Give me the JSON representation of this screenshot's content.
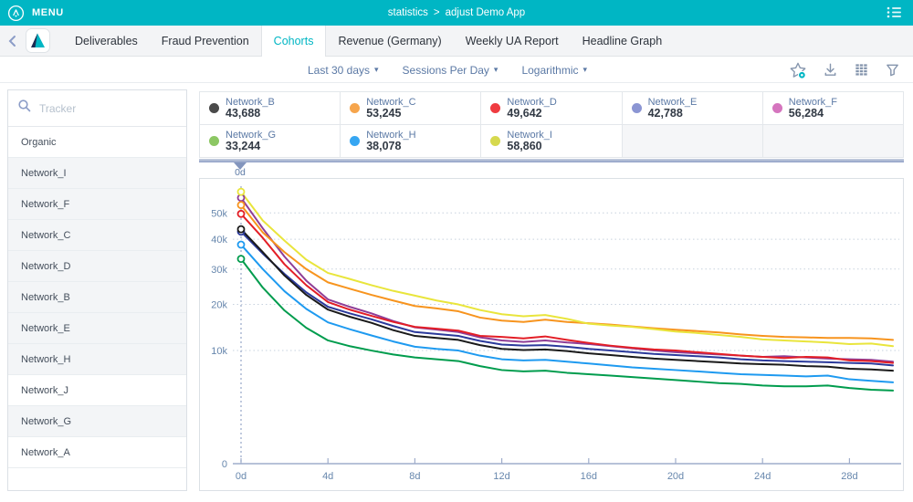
{
  "colors": {
    "accent_teal": "#00b6c4",
    "slate_label": "#5b79a5",
    "axis_text": "#6787ad",
    "grid_dotted": "#c7d1de",
    "axis_line": "#9fadcb",
    "icon_gray": "#8595ad"
  },
  "topbar": {
    "menu_label": "MENU",
    "breadcrumb": {
      "section": "statistics",
      "separator": ">",
      "page": "adjust Demo App"
    }
  },
  "tabs": [
    {
      "label": "Deliverables",
      "active": false
    },
    {
      "label": "Fraud Prevention",
      "active": false
    },
    {
      "label": "Cohorts",
      "active": true
    },
    {
      "label": "Revenue (Germany)",
      "active": false
    },
    {
      "label": "Weekly UA Report",
      "active": false
    },
    {
      "label": "Headline Graph",
      "active": false
    }
  ],
  "filters": {
    "dropdowns": [
      {
        "label": "Last 30 days"
      },
      {
        "label": "Sessions Per Day"
      },
      {
        "label": "Logarithmic"
      }
    ],
    "tools": [
      "favorite-star",
      "download",
      "table-view",
      "filter"
    ]
  },
  "sidebar": {
    "search_placeholder": "Tracker",
    "items": [
      {
        "label": "Organic",
        "highlighted": false
      },
      {
        "label": "Network_I",
        "highlighted": true
      },
      {
        "label": "Network_F",
        "highlighted": true
      },
      {
        "label": "Network_C",
        "highlighted": true
      },
      {
        "label": "Network_D",
        "highlighted": true
      },
      {
        "label": "Network_B",
        "highlighted": true
      },
      {
        "label": "Network_E",
        "highlighted": true
      },
      {
        "label": "Network_H",
        "highlighted": true
      },
      {
        "label": "Network_J",
        "highlighted": false
      },
      {
        "label": "Network_G",
        "highlighted": true
      },
      {
        "label": "Network_A",
        "highlighted": false
      }
    ]
  },
  "legend": {
    "cells": [
      {
        "name": "Network_B",
        "value": "43,688",
        "dot_color": "#4a4a4a"
      },
      {
        "name": "Network_C",
        "value": "53,245",
        "dot_color": "#f6a54c"
      },
      {
        "name": "Network_D",
        "value": "49,642",
        "dot_color": "#ef3b40"
      },
      {
        "name": "Network_E",
        "value": "42,788",
        "dot_color": "#8b95d3"
      },
      {
        "name": "Network_F",
        "value": "56,284",
        "dot_color": "#d575be"
      },
      {
        "name": "Network_G",
        "value": "33,244",
        "dot_color": "#8cc763"
      },
      {
        "name": "Network_H",
        "value": "38,078",
        "dot_color": "#36a6f2"
      },
      {
        "name": "Network_I",
        "value": "58,860",
        "dot_color": "#d6d94e"
      },
      {
        "empty": true
      },
      {
        "empty": true
      }
    ]
  },
  "slider": {
    "label": "0d"
  },
  "chart_data": {
    "type": "line",
    "x_unit": "days",
    "x_max": 30,
    "y_scale": "sqrt",
    "y_ticks": [
      {
        "label": "50k",
        "value": 50000
      },
      {
        "label": "40k",
        "value": 40000
      },
      {
        "label": "30k",
        "value": 30000
      },
      {
        "label": "20k",
        "value": 20000
      },
      {
        "label": "10k",
        "value": 10000
      }
    ],
    "y_zero_label": "0",
    "x_ticks": [
      {
        "label": "0d",
        "day": 0
      },
      {
        "label": "4d",
        "day": 4
      },
      {
        "label": "8d",
        "day": 8
      },
      {
        "label": "12d",
        "day": 12
      },
      {
        "label": "16d",
        "day": 16
      },
      {
        "label": "20d",
        "day": 20
      },
      {
        "label": "24d",
        "day": 24
      },
      {
        "label": "28d",
        "day": 28
      }
    ],
    "series": [
      {
        "name": "Network_G",
        "color": "#009c4d",
        "dot_color": "#8cc763",
        "values": [
          33244,
          24500,
          18500,
          14500,
          11900,
          10800,
          10000,
          9300,
          8800,
          8500,
          8200,
          7400,
          6800,
          6600,
          6700,
          6400,
          6200,
          6000,
          5800,
          5600,
          5400,
          5200,
          5000,
          4900,
          4700,
          4600,
          4600,
          4700,
          4400,
          4200,
          4100
        ]
      },
      {
        "name": "Network_H",
        "color": "#1e9af0",
        "dot_color": "#36a6f2",
        "values": [
          38078,
          30000,
          23500,
          18900,
          15700,
          14200,
          12900,
          11700,
          10700,
          10300,
          10000,
          9100,
          8500,
          8300,
          8400,
          8100,
          7800,
          7500,
          7200,
          7000,
          6800,
          6600,
          6400,
          6200,
          6100,
          6000,
          5900,
          6000,
          5500,
          5300,
          5100
        ]
      },
      {
        "name": "Network_E",
        "color": "#2b3a9c",
        "dot_color": "#8b95d3",
        "values": [
          42788,
          35000,
          28500,
          23200,
          19400,
          17800,
          16400,
          14900,
          13600,
          13200,
          12800,
          11800,
          11100,
          10900,
          11000,
          10700,
          10300,
          10000,
          9700,
          9400,
          9200,
          9000,
          8800,
          8500,
          8300,
          8200,
          8100,
          8000,
          7900,
          7800,
          7500
        ]
      },
      {
        "name": "Network_B",
        "color": "#1a1a1a",
        "dot_color": "#4a4a4a",
        "values": [
          43688,
          35500,
          28000,
          22500,
          18700,
          17000,
          15600,
          14000,
          12800,
          12400,
          12000,
          11000,
          10300,
          10100,
          10200,
          9900,
          9500,
          9200,
          8900,
          8600,
          8400,
          8200,
          8000,
          7800,
          7700,
          7600,
          7400,
          7300,
          7000,
          6900,
          6700
        ]
      },
      {
        "name": "Network_F",
        "color": "#8f3d96",
        "dot_color": "#d575be",
        "values": [
          56284,
          44000,
          34000,
          26500,
          21300,
          19400,
          17800,
          16000,
          14600,
          14100,
          13600,
          12500,
          11900,
          11600,
          11900,
          11500,
          11200,
          10800,
          10400,
          10000,
          9700,
          9500,
          9300,
          9100,
          8900,
          9000,
          8800,
          8600,
          8500,
          8400,
          8100
        ]
      },
      {
        "name": "Network_D",
        "color": "#e31e26",
        "dot_color": "#ef3b40",
        "values": [
          49642,
          40500,
          31500,
          25200,
          20600,
          18700,
          17200,
          15800,
          14700,
          14300,
          13900,
          12800,
          12600,
          12300,
          12700,
          12000,
          11400,
          10900,
          10500,
          10200,
          10000,
          9700,
          9400,
          9100,
          8900,
          8700,
          8900,
          8800,
          8300,
          8200,
          7900
        ]
      },
      {
        "name": "Network_C",
        "color": "#f7941e",
        "dot_color": "#f6a54c",
        "values": [
          53245,
          42500,
          35500,
          30000,
          26000,
          24200,
          22500,
          21000,
          19600,
          19000,
          18300,
          16800,
          16100,
          15800,
          16300,
          15800,
          15500,
          15200,
          14800,
          14400,
          14100,
          13800,
          13500,
          13100,
          12800,
          12600,
          12500,
          12400,
          12400,
          12300,
          12000
        ]
      },
      {
        "name": "Network_I",
        "color": "#e9e53c",
        "dot_color": "#d6d94e",
        "values": [
          58860,
          47000,
          39500,
          33000,
          28800,
          27000,
          25200,
          23600,
          22300,
          21000,
          20000,
          18600,
          17600,
          17100,
          17400,
          16500,
          15400,
          15000,
          14700,
          14200,
          13700,
          13400,
          13000,
          12600,
          12100,
          11900,
          11700,
          11500,
          11200,
          11300,
          10800
        ]
      }
    ]
  }
}
